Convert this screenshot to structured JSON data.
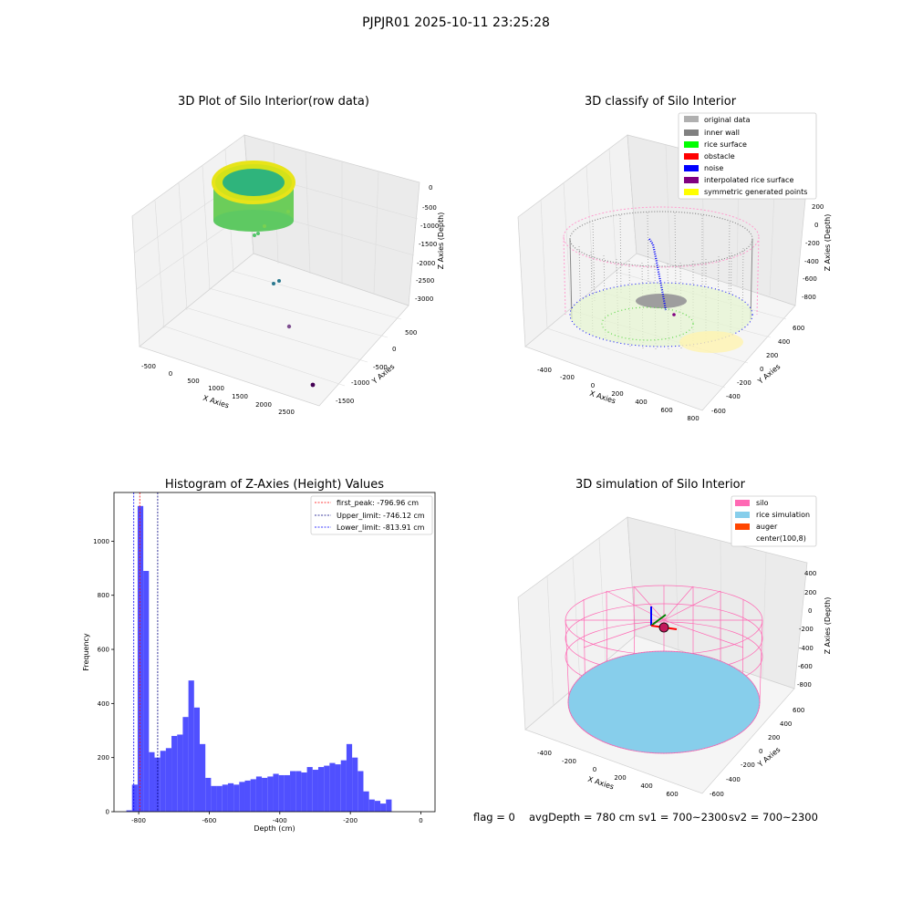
{
  "figure_title": "PJPJR01 2025-10-11 23:25:28",
  "panels": {
    "raw": {
      "title": "3D Plot of Silo Interior(row data)",
      "xlabel": "X Axies",
      "ylabel": "Y Axies",
      "zlabel": "Z Axies (Depth)",
      "xticks": [
        "-500",
        "0",
        "500",
        "1000",
        "1500",
        "2000",
        "2500"
      ],
      "yticks": [
        "500",
        "0",
        "-500",
        "-1000",
        "-1500"
      ],
      "zticks": [
        "0",
        "-500",
        "-1000",
        "-1500",
        "-2000",
        "-2500",
        "-3000"
      ]
    },
    "classify": {
      "title": "3D classify of Silo Interior",
      "xlabel": "X Axies",
      "ylabel": "Y Axies",
      "zlabel": "Z Axies (Depth)",
      "xticks": [
        "-400",
        "-200",
        "0",
        "200",
        "400",
        "600",
        "800"
      ],
      "yticks": [
        "600",
        "400",
        "200",
        "0",
        "-200",
        "-400",
        "-600"
      ],
      "zticks": [
        "200",
        "0",
        "-200",
        "-400",
        "-600",
        "-800"
      ]
    },
    "simulation": {
      "title": "3D simulation of Silo Interior",
      "xlabel": "X Axies",
      "ylabel": "Y Axies",
      "zlabel": "Z Axies (Depth)",
      "xticks": [
        "-400",
        "-200",
        "0",
        "200",
        "400",
        "600"
      ],
      "yticks": [
        "600",
        "400",
        "200",
        "0",
        "-200",
        "-400",
        "-600"
      ],
      "zticks": [
        "400",
        "200",
        "0",
        "-200",
        "-400",
        "-600",
        "-800"
      ]
    }
  },
  "chart_data": [
    {
      "type": "scatter",
      "title": "3D Plot of Silo Interior(row data)",
      "xlabel": "X Axies",
      "ylabel": "Y Axies",
      "zlabel": "Z Axies (Depth)",
      "xlim": [
        -600,
        2800
      ],
      "ylim": [
        -1700,
        700
      ],
      "zlim": [
        -3300,
        100
      ],
      "colormap": "viridis"
    },
    {
      "type": "scatter",
      "title": "3D classify of Silo Interior",
      "xlabel": "X Axies",
      "ylabel": "Y Axies",
      "zlabel": "Z Axies (Depth)",
      "xlim": [
        -500,
        800
      ],
      "ylim": [
        -650,
        650
      ],
      "zlim": [
        -900,
        300
      ],
      "legend_placement": "top-right",
      "legend": [
        {
          "label": "original data",
          "color": "#b0b0b0"
        },
        {
          "label": "inner wall",
          "color": "#808080"
        },
        {
          "label": "rice surface",
          "color": "#00ff00"
        },
        {
          "label": "obstacle",
          "color": "#ff0000"
        },
        {
          "label": "noise",
          "color": "#0000ff"
        },
        {
          "label": "interpolated rice surface",
          "color": "#800080"
        },
        {
          "label": "symmetric generated points",
          "color": "#ffff00"
        }
      ]
    },
    {
      "type": "bar",
      "title": "Histogram of Z-Axies (Height) Values",
      "xlabel": "Depth (cm)",
      "ylabel": "Frequency",
      "xlim": [
        -870,
        40
      ],
      "ylim": [
        0,
        1180
      ],
      "xticks": [
        -800,
        -600,
        -400,
        -200,
        0
      ],
      "yticks": [
        0,
        200,
        400,
        600,
        800,
        1000
      ],
      "bar_color": "#5050ff",
      "bins": {
        "start": -835,
        "width": 16,
        "values": [
          5,
          100,
          1130,
          890,
          220,
          200,
          225,
          235,
          280,
          285,
          350,
          485,
          385,
          250,
          125,
          95,
          95,
          100,
          105,
          100,
          110,
          115,
          120,
          130,
          125,
          130,
          140,
          135,
          135,
          150,
          150,
          145,
          165,
          155,
          165,
          170,
          180,
          175,
          190,
          250,
          200,
          150,
          75,
          45,
          40,
          30,
          45
        ]
      },
      "vlines": [
        {
          "label": "first_peak: -796.96 cm",
          "x": -796.96,
          "color": "#ff0000"
        },
        {
          "label": "Upper_limit: -746.12 cm",
          "x": -746.12,
          "color": "#000080"
        },
        {
          "label": "Lower_limit: -813.91 cm",
          "x": -813.91,
          "color": "#0000ff"
        }
      ],
      "legend_placement": "top-right"
    },
    {
      "type": "scatter",
      "title": "3D simulation of Silo Interior",
      "xlabel": "X Axies",
      "ylabel": "Y Axies",
      "zlabel": "Z Axies (Depth)",
      "xlim": [
        -500,
        700
      ],
      "ylim": [
        -650,
        650
      ],
      "zlim": [
        -900,
        450
      ],
      "legend_placement": "top-right",
      "legend": [
        {
          "label": "silo",
          "color": "#ff69b4"
        },
        {
          "label": "rice simulation",
          "color": "#87ceeb"
        },
        {
          "label": "auger",
          "color": "#ff4500"
        },
        {
          "label": "center(100,8)",
          "color": "#ffffff"
        }
      ]
    }
  ],
  "status": {
    "flag": "flag = 0",
    "avg_depth": "avgDepth = 780 cm",
    "sv1": "sv1 = 700~2300",
    "sv2": "sv2 = 700~2300"
  }
}
